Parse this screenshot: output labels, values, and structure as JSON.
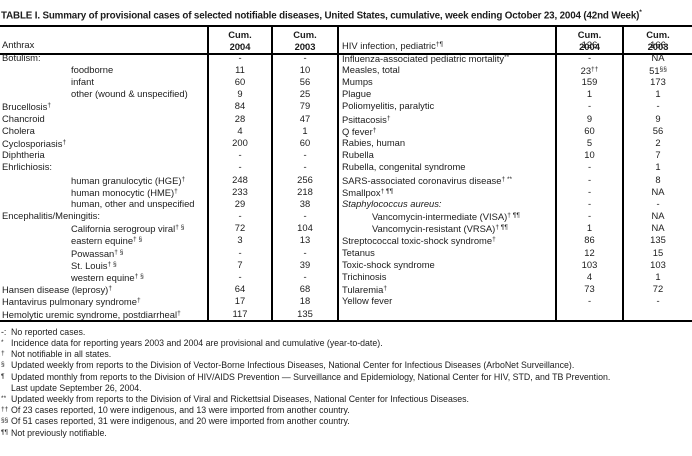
{
  "title": "TABLE I. Summary of provisional cases of selected notifiable diseases, United States, cumulative, week ending October 23, 2004 (42nd Week)",
  "title_sup": "*",
  "header": {
    "cum": "Cum.",
    "y2004": "2004",
    "y2003": "2003"
  },
  "left_rows": [
    {
      "label": "Anthrax",
      "v04": "-",
      "v03": "-"
    },
    {
      "label": "Botulism:",
      "v04": "-",
      "v03": "-"
    },
    {
      "label": "foodborne",
      "ind": 1,
      "v04": "11",
      "v03": "10"
    },
    {
      "label": "infant",
      "ind": 1,
      "v04": "60",
      "v03": "56"
    },
    {
      "label": "other (wound & unspecified)",
      "ind": 1,
      "v04": "9",
      "v03": "25"
    },
    {
      "label": "Brucellosis",
      "sup": "†",
      "v04": "84",
      "v03": "79"
    },
    {
      "label": "Chancroid",
      "v04": "28",
      "v03": "47"
    },
    {
      "label": "Cholera",
      "v04": "4",
      "v03": "1"
    },
    {
      "label": "Cyclosporiasis",
      "sup": "†",
      "v04": "200",
      "v03": "60"
    },
    {
      "label": "Diphtheria",
      "v04": "-",
      "v03": "-"
    },
    {
      "label": "Ehrlichiosis:",
      "v04": "-",
      "v03": "-"
    },
    {
      "label": "human granulocytic (HGE)",
      "sup": "†",
      "ind": 1,
      "v04": "248",
      "v03": "256"
    },
    {
      "label": "human monocytic (HME)",
      "sup": "†",
      "ind": 1,
      "v04": "233",
      "v03": "218"
    },
    {
      "label": "human, other and unspecified",
      "ind": 1,
      "v04": "29",
      "v03": "38"
    },
    {
      "label": "Encephalitis/Meningitis:",
      "v04": "-",
      "v03": "-"
    },
    {
      "label": "California serogroup viral",
      "sup": "† §",
      "ind": 1,
      "v04": "72",
      "v03": "104"
    },
    {
      "label": "eastern equine",
      "sup": "† §",
      "ind": 1,
      "v04": "3",
      "v03": "13"
    },
    {
      "label": "Powassan",
      "sup": "† §",
      "ind": 1,
      "v04": "-",
      "v03": "-"
    },
    {
      "label": "St. Louis",
      "sup": "† §",
      "ind": 1,
      "v04": "7",
      "v03": "39"
    },
    {
      "label": "western equine",
      "sup": "† §",
      "ind": 1,
      "v04": "-",
      "v03": "-"
    },
    {
      "label": "Hansen disease (leprosy)",
      "sup": "†",
      "v04": "64",
      "v03": "68"
    },
    {
      "label": "Hantavirus pulmonary syndrome",
      "sup": "†",
      "v04": "17",
      "v03": "18"
    },
    {
      "label": "Hemolytic uremic syndrome, postdiarrheal",
      "sup": "†",
      "v04": "117",
      "v03": "135"
    }
  ],
  "right_rows": [
    {
      "label": "HIV infection, pediatric",
      "sup": "†¶",
      "v04": "126",
      "v03": "166"
    },
    {
      "label": "Influenza-associated pediatric mortality",
      "sup": "**",
      "v04": "-",
      "v03": "NA"
    },
    {
      "label": "Measles, total",
      "v04": "23",
      "v04s": "††",
      "v03": "51",
      "v03s": "§§"
    },
    {
      "label": "Mumps",
      "v04": "159",
      "v03": "173"
    },
    {
      "label": "Plague",
      "v04": "1",
      "v03": "1"
    },
    {
      "label": "Poliomyelitis, paralytic",
      "v04": "-",
      "v03": "-"
    },
    {
      "label": "Psittacosis",
      "sup": "†",
      "v04": "9",
      "v03": "9"
    },
    {
      "label": "Q fever",
      "sup": "†",
      "v04": "60",
      "v03": "56"
    },
    {
      "label": "Rabies, human",
      "v04": "5",
      "v03": "2"
    },
    {
      "label": "Rubella",
      "v04": "10",
      "v03": "7"
    },
    {
      "label": "Rubella, congenital syndrome",
      "v04": "-",
      "v03": "1"
    },
    {
      "label": "SARS-associated coronavirus disease",
      "sup": "† **",
      "v04": "-",
      "v03": "8"
    },
    {
      "label": "Smallpox",
      "sup": "† ¶¶",
      "v04": "-",
      "v03": "NA"
    },
    {
      "label": "Staphylococcus aureus:",
      "it": 1,
      "v04": "-",
      "v03": "-"
    },
    {
      "label": "Vancomycin-intermediate (VISA)",
      "sup": "† ¶¶",
      "ind": 1,
      "v04": "-",
      "v03": "NA"
    },
    {
      "label": "Vancomycin-resistant (VRSA)",
      "sup": "† ¶¶",
      "ind": 1,
      "v04": "1",
      "v03": "NA"
    },
    {
      "label": "Streptococcal toxic-shock syndrome",
      "sup": "†",
      "v04": "86",
      "v03": "135"
    },
    {
      "label": "Tetanus",
      "v04": "12",
      "v03": "15"
    },
    {
      "label": "Toxic-shock syndrome",
      "v04": "103",
      "v03": "103"
    },
    {
      "label": "Trichinosis",
      "v04": "4",
      "v03": "1"
    },
    {
      "label": "Tularemia",
      "sup": "†",
      "v04": "73",
      "v03": "72"
    },
    {
      "label": "Yellow fever",
      "v04": "-",
      "v03": "-"
    },
    {
      "label": "",
      "v04": "",
      "v03": ""
    }
  ],
  "footnotes": [
    {
      "marker": "-:",
      "sup": false,
      "text": "No reported cases."
    },
    {
      "marker": "*",
      "sup": true,
      "text": "Incidence data for reporting years 2003 and 2004 are provisional and cumulative (year-to-date)."
    },
    {
      "marker": "†",
      "sup": true,
      "text": "Not notifiable in all states."
    },
    {
      "marker": "§",
      "sup": true,
      "text": "Updated weekly from reports to the Division of Vector-Borne Infectious Diseases, National Center for Infectious Diseases (ArboNet Surveillance)."
    },
    {
      "marker": "¶",
      "sup": true,
      "text": "Updated monthly from reports to the Division of HIV/AIDS Prevention — Surveillance and Epidemiology, National Center for HIV, STD, and TB Prevention."
    },
    {
      "marker": "",
      "sup": false,
      "text": "Last update September 26, 2004."
    },
    {
      "marker": "**",
      "sup": true,
      "text": "Updated weekly from reports to the Division of Viral and Rickettsial Diseases, National Center for Infectious Diseases."
    },
    {
      "marker": "††",
      "sup": true,
      "text": "Of 23 cases reported, 10 were indigenous, and 13 were imported from another country."
    },
    {
      "marker": "§§",
      "sup": true,
      "text": "Of 51 cases reported, 31 were indigenous, and 20 were imported from another country."
    },
    {
      "marker": "¶¶",
      "sup": true,
      "text": "Not previously notifiable."
    }
  ]
}
